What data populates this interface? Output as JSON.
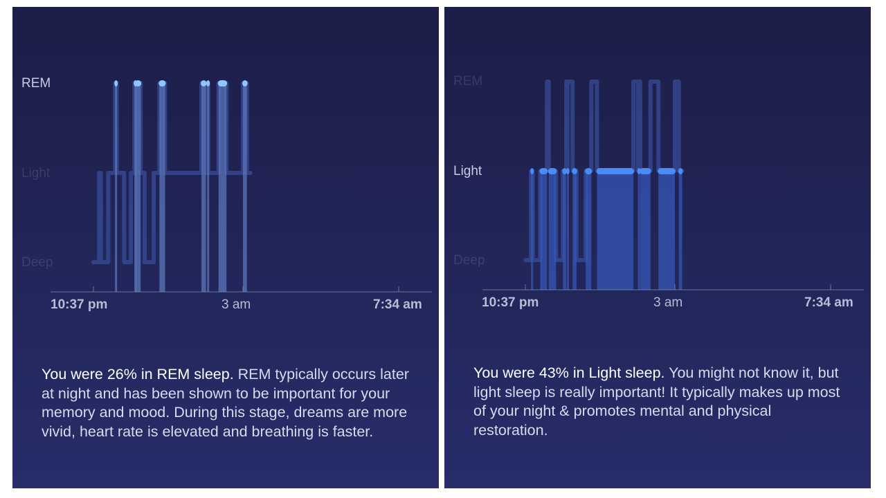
{
  "chart_data": [
    {
      "type": "step",
      "highlighted_stage": "REM",
      "stages": [
        "REM",
        "Light",
        "Deep"
      ],
      "x_tick_labels": [
        "10:37 pm",
        "3 am",
        "7:34 am"
      ],
      "xlim": [
        "10:37 pm",
        "7:34 am"
      ],
      "segments": [
        {
          "start": "10:37 pm",
          "end": "10:47 pm",
          "stage": "Deep"
        },
        {
          "start": "10:47 pm",
          "end": "10:50 pm",
          "stage": "Light"
        },
        {
          "start": "10:50 pm",
          "end": "11:03 pm",
          "stage": "Deep"
        },
        {
          "start": "11:03 pm",
          "end": "11:15 pm",
          "stage": "Light"
        },
        {
          "start": "11:15 pm",
          "end": "11:18 pm",
          "stage": "REM"
        },
        {
          "start": "11:18 pm",
          "end": "11:31 pm",
          "stage": "Light"
        },
        {
          "start": "11:31 pm",
          "end": "11:43 pm",
          "stage": "Deep"
        },
        {
          "start": "11:43 pm",
          "end": "11:49 pm",
          "stage": "Light"
        },
        {
          "start": "11:49 pm",
          "end": "11:50 pm",
          "stage": "REM"
        },
        {
          "start": "11:50 pm",
          "end": "11:51 pm",
          "stage": "Light"
        },
        {
          "start": "11:51 pm",
          "end": "12:00 am",
          "stage": "REM"
        },
        {
          "start": "12:00 am",
          "end": "12:07 am",
          "stage": "Light"
        },
        {
          "start": "12:07 am",
          "end": "12:23 am",
          "stage": "Deep"
        },
        {
          "start": "12:23 am",
          "end": "12:33 am",
          "stage": "Light"
        },
        {
          "start": "12:33 am",
          "end": "12:43 am",
          "stage": "REM"
        },
        {
          "start": "12:43 am",
          "end": "1:47 am",
          "stage": "Light"
        },
        {
          "start": "1:47 am",
          "end": "1:55 am",
          "stage": "REM"
        },
        {
          "start": "1:55 am",
          "end": "1:57 am",
          "stage": "Light"
        },
        {
          "start": "1:57 am",
          "end": "1:59 am",
          "stage": "REM"
        },
        {
          "start": "1:59 am",
          "end": "2:17 am",
          "stage": "Light"
        },
        {
          "start": "2:17 am",
          "end": "2:31 am",
          "stage": "REM"
        },
        {
          "start": "2:31 am",
          "end": "3:00 am",
          "stage": "Light"
        },
        {
          "start": "3:00 am",
          "end": "3:07 am",
          "stage": "REM"
        },
        {
          "start": "3:07 am",
          "end": "3:13 am",
          "stage": "Light"
        }
      ]
    },
    {
      "type": "step",
      "highlighted_stage": "Light",
      "stages": [
        "REM",
        "Light",
        "Deep"
      ],
      "x_tick_labels": [
        "10:37 pm",
        "3 am",
        "7:34 am"
      ],
      "xlim": [
        "10:37 pm",
        "7:34 am"
      ],
      "segments": [
        {
          "start": "10:37 pm",
          "end": "10:47 pm",
          "stage": "Deep"
        },
        {
          "start": "10:47 pm",
          "end": "10:50 pm",
          "stage": "Light"
        },
        {
          "start": "10:50 pm",
          "end": "11:03 pm",
          "stage": "Deep"
        },
        {
          "start": "11:03 pm",
          "end": "11:15 pm",
          "stage": "Light"
        },
        {
          "start": "11:15 pm",
          "end": "11:18 pm",
          "stage": "REM"
        },
        {
          "start": "11:18 pm",
          "end": "11:31 pm",
          "stage": "Light"
        },
        {
          "start": "11:31 pm",
          "end": "11:43 pm",
          "stage": "Deep"
        },
        {
          "start": "11:43 pm",
          "end": "11:49 pm",
          "stage": "Light"
        },
        {
          "start": "11:49 pm",
          "end": "11:50 pm",
          "stage": "REM"
        },
        {
          "start": "11:50 pm",
          "end": "11:51 pm",
          "stage": "Light"
        },
        {
          "start": "11:51 pm",
          "end": "12:00 am",
          "stage": "REM"
        },
        {
          "start": "12:00 am",
          "end": "12:07 am",
          "stage": "Light"
        },
        {
          "start": "12:07 am",
          "end": "12:23 am",
          "stage": "Deep"
        },
        {
          "start": "12:23 am",
          "end": "12:33 am",
          "stage": "Light"
        },
        {
          "start": "12:33 am",
          "end": "12:43 am",
          "stage": "REM"
        },
        {
          "start": "12:43 am",
          "end": "1:47 am",
          "stage": "Light"
        },
        {
          "start": "1:47 am",
          "end": "1:55 am",
          "stage": "REM"
        },
        {
          "start": "1:55 am",
          "end": "1:57 am",
          "stage": "Light"
        },
        {
          "start": "1:57 am",
          "end": "1:59 am",
          "stage": "REM"
        },
        {
          "start": "1:59 am",
          "end": "2:17 am",
          "stage": "Light"
        },
        {
          "start": "2:17 am",
          "end": "2:31 am",
          "stage": "REM"
        },
        {
          "start": "2:31 am",
          "end": "3:00 am",
          "stage": "Light"
        },
        {
          "start": "3:00 am",
          "end": "3:07 am",
          "stage": "REM"
        },
        {
          "start": "3:07 am",
          "end": "3:13 am",
          "stage": "Light"
        }
      ]
    }
  ],
  "panels": [
    {
      "stage_labels": {
        "rem": "REM",
        "light": "Light",
        "deep": "Deep"
      },
      "time_labels": {
        "start": "10:37 pm",
        "mid": "3 am",
        "end": "7:34 am"
      },
      "summary_lead": "You were 26% in REM sleep.",
      "summary_body": " REM typically occurs later at night and has been shown to be important for your memory and mood. During this stage, dreams are more vivid, heart rate is elevated and breathing is faster."
    },
    {
      "stage_labels": {
        "rem": "REM",
        "light": "Light",
        "deep": "Deep"
      },
      "time_labels": {
        "start": "10:37 pm",
        "mid": "3 am",
        "end": "7:34 am"
      },
      "summary_lead": "You were 43% in Light sleep.",
      "summary_body": " You might not know it, but light sleep is really important! It typically makes up most of your night & promotes mental and physical restoration."
    }
  ],
  "colors": {
    "background": "#202356",
    "highlight_rem": "#8fc6ff",
    "highlight_light": "#4a8cf7",
    "trace": "#3d56a8",
    "column_rem": "#5b76b8",
    "column_light": "#3557b8"
  }
}
